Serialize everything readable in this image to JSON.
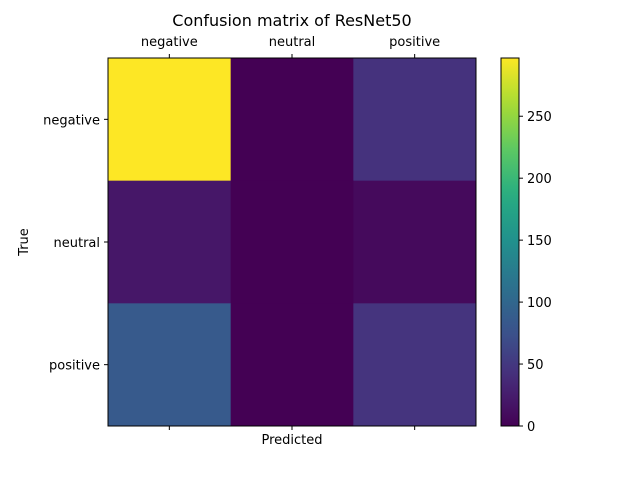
{
  "chart_data": {
    "type": "heatmap",
    "title": "Confusion matrix of ResNet50",
    "xlabel": "Predicted",
    "ylabel": "True",
    "x_categories": [
      "negative",
      "neutral",
      "positive"
    ],
    "y_categories": [
      "negative",
      "neutral",
      "positive"
    ],
    "values": [
      [
        297,
        0,
        44
      ],
      [
        20,
        0,
        8
      ],
      [
        85,
        0,
        46
      ]
    ],
    "colorbar": {
      "colormap": "viridis",
      "range": [
        0,
        297
      ],
      "ticks": [
        0,
        50,
        100,
        150,
        200,
        250
      ]
    },
    "grid": false
  }
}
